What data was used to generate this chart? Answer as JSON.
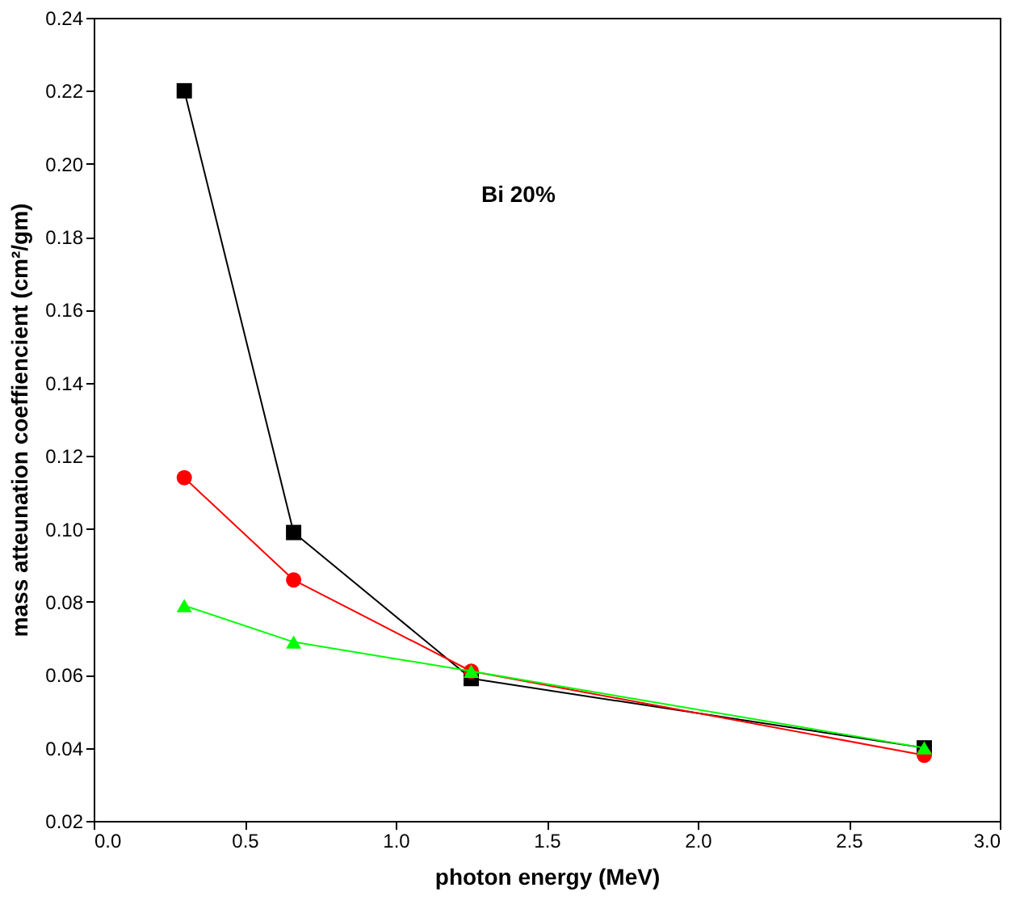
{
  "chart_data": {
    "type": "line",
    "xlabel": "photon energy (MeV)",
    "ylabel": "mass atteunation coeffiencient (cm²/gm)",
    "annotations": [
      "Bi 20%"
    ],
    "x": [
      0.3,
      0.662,
      1.25,
      2.75
    ],
    "series": [
      {
        "color": "#000000",
        "marker": "square",
        "values": [
          0.22,
          0.099,
          0.059,
          0.04
        ]
      },
      {
        "color": "#ff0000",
        "marker": "circle",
        "values": [
          0.114,
          0.086,
          0.061,
          0.038
        ]
      },
      {
        "color": "#00ff00",
        "marker": "triangle",
        "values": [
          0.079,
          0.069,
          0.061,
          0.04
        ]
      }
    ],
    "xlim": [
      0.0,
      3.0
    ],
    "xticks": [
      {
        "value": 0.0,
        "label": "0.0"
      },
      0.5,
      {
        "value": 1.0,
        "label": "1.0"
      },
      1.5,
      {
        "value": 2.0,
        "label": "2.0"
      },
      2.5,
      {
        "value": 3.0,
        "label": "3.0"
      }
    ],
    "ylim": [
      0.02,
      0.24
    ],
    "yticks": [
      0.02,
      0.04,
      0.06,
      0.08,
      {
        "value": 0.1,
        "label": "0.10"
      },
      0.12,
      0.14,
      0.16,
      0.18,
      {
        "value": 0.2,
        "label": "0.20"
      },
      0.22,
      0.24
    ],
    "grid": false,
    "line_style": "solid"
  }
}
